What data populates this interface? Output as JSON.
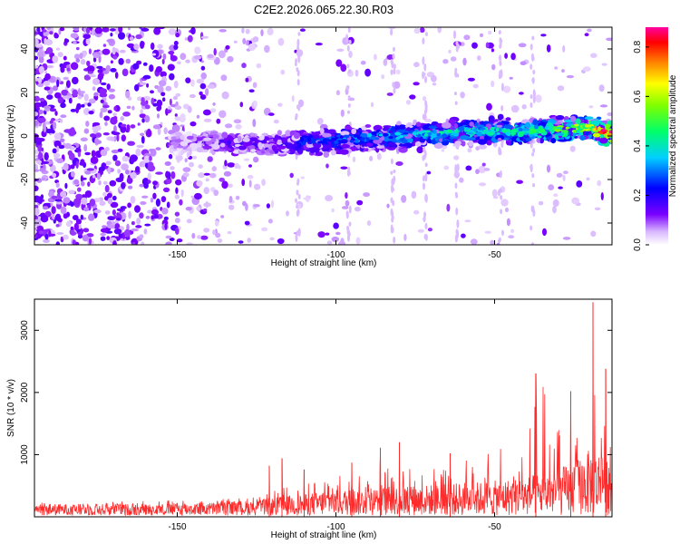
{
  "chart_data": [
    {
      "type": "heatmap",
      "title": "C2E2.2026.065.22.30.R03",
      "xlabel": "Height of straight line (km)",
      "ylabel": "Frequency (Hz)",
      "xlim": [
        -195,
        -13
      ],
      "ylim": [
        -50,
        50
      ],
      "xticks": [
        -150,
        -100,
        -50
      ],
      "yticks": [
        -40,
        -20,
        0,
        20,
        40
      ],
      "colorbar": {
        "label": "Normalized spectral amplitude",
        "range": [
          0,
          0.88
        ],
        "ticks": [
          0.0,
          0.2,
          0.4,
          0.6,
          0.8
        ],
        "colormap": [
          "#ffffff",
          "#d9b8ff",
          "#7a00ff",
          "#0000ff",
          "#00cfff",
          "#00ff6a",
          "#ffff00",
          "#ff8000",
          "#ff0000",
          "#ff00a0"
        ]
      },
      "ridge": {
        "description_points_x": [
          -150,
          -140,
          -120,
          -100,
          -80,
          -60,
          -40,
          -20,
          -15
        ],
        "frequency_hz": [
          -3,
          -3,
          -4,
          -2,
          0,
          2,
          2,
          4,
          1
        ],
        "amplitude": [
          0.1,
          0.15,
          0.2,
          0.3,
          0.35,
          0.4,
          0.45,
          0.6,
          0.85
        ]
      },
      "grid": false
    },
    {
      "type": "line",
      "xlabel": "Height of straight line (km)",
      "ylabel": "SNR (10 * v/v)",
      "xlim": [
        -195,
        -13
      ],
      "ylim": [
        0,
        3500
      ],
      "xticks": [
        -150,
        -100,
        -50
      ],
      "yticks": [
        1000,
        2000,
        3000
      ],
      "line_color": "#ff2a2a",
      "envelope": {
        "x": [
          -195,
          -160,
          -140,
          -125,
          -115,
          -100,
          -90,
          -80,
          -70,
          -60,
          -50,
          -40,
          -35,
          -30,
          -25,
          -20,
          -18,
          -16,
          -14
        ],
        "typical": [
          150,
          150,
          170,
          200,
          260,
          330,
          360,
          380,
          400,
          420,
          450,
          500,
          560,
          600,
          700,
          850,
          800,
          900,
          700
        ],
        "peak": [
          250,
          260,
          280,
          320,
          500,
          650,
          800,
          900,
          800,
          900,
          1150,
          1250,
          2300,
          1500,
          2000,
          3500,
          2200,
          2400,
          1300
        ]
      },
      "spikes": [
        {
          "x": -121,
          "y": 820
        },
        {
          "x": -117,
          "y": 940
        },
        {
          "x": -110,
          "y": 760
        },
        {
          "x": -95,
          "y": 870
        },
        {
          "x": -86,
          "y": 1110
        },
        {
          "x": -80,
          "y": 1200
        },
        {
          "x": -64,
          "y": 1020
        },
        {
          "x": -37,
          "y": 2300
        },
        {
          "x": -26,
          "y": 2020
        },
        {
          "x": -19,
          "y": 3450
        },
        {
          "x": -15,
          "y": 2380
        }
      ],
      "grid": false
    }
  ]
}
